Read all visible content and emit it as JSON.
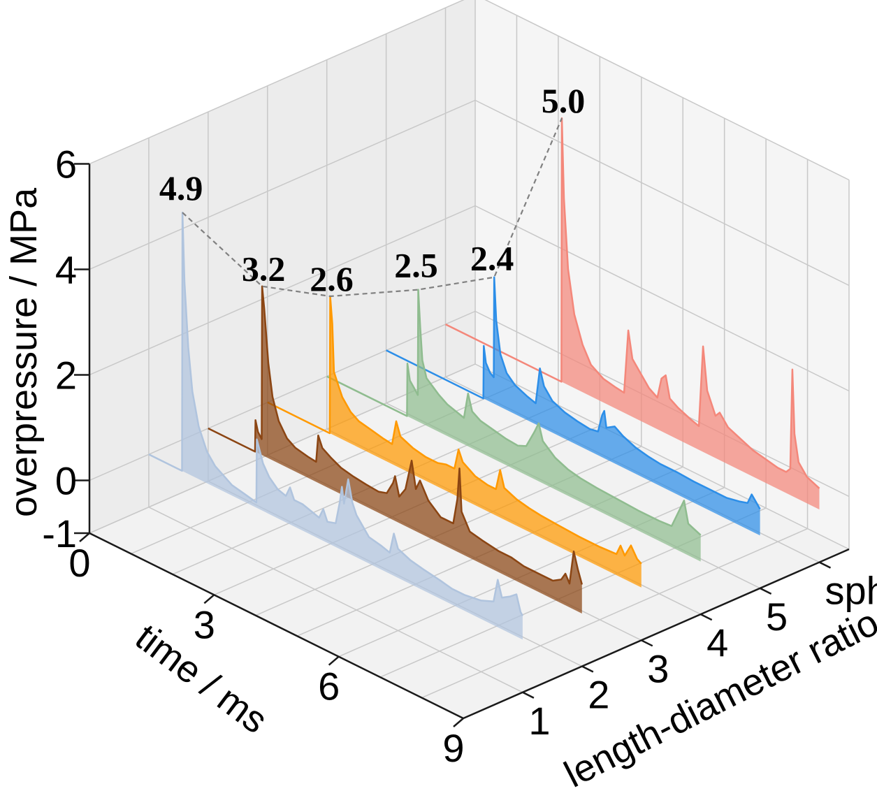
{
  "chart_data": {
    "type": "area",
    "projection": "3d",
    "xlabel": "time / ms",
    "ylabel": "length-diameter ratio",
    "zlabel": "overpressure / MPa",
    "x_ticks": [
      "0",
      "3",
      "6",
      "9"
    ],
    "y_ticks": [
      "1",
      "2",
      "3",
      "4",
      "5",
      "sphere"
    ],
    "z_ticks": [
      "-1",
      "0",
      "2",
      "4",
      "6"
    ],
    "xlim": [
      0,
      9
    ],
    "zlim": [
      -1,
      6
    ],
    "grid": true,
    "series": [
      {
        "category": "1",
        "color": "#b0c4de",
        "peak": 4.9,
        "peak_label": "4.9",
        "points": [
          [
            0,
            0
          ],
          [
            0.8,
            0
          ],
          [
            0.81,
            4.9
          ],
          [
            0.86,
            3.6
          ],
          [
            0.95,
            2.4
          ],
          [
            1.05,
            1.6
          ],
          [
            1.2,
            1.0
          ],
          [
            1.4,
            0.6
          ],
          [
            1.6,
            0.4
          ],
          [
            1.8,
            0.3
          ],
          [
            2.0,
            0.2
          ],
          [
            2.3,
            0.15
          ],
          [
            2.59,
            0.1
          ],
          [
            2.6,
            1.3
          ],
          [
            2.75,
            0.9
          ],
          [
            2.9,
            0.7
          ],
          [
            3.1,
            0.55
          ],
          [
            3.3,
            0.5
          ],
          [
            3.4,
            0.7
          ],
          [
            3.5,
            0.5
          ],
          [
            3.7,
            0.5
          ],
          [
            3.9,
            0.45
          ],
          [
            4.1,
            0.4
          ],
          [
            4.2,
            0.6
          ],
          [
            4.3,
            0.4
          ],
          [
            4.5,
            0.45
          ],
          [
            4.6,
            0.9
          ],
          [
            4.65,
            1.2
          ],
          [
            4.7,
            0.9
          ],
          [
            4.8,
            1.4
          ],
          [
            4.9,
            1.0
          ],
          [
            5.0,
            0.8
          ],
          [
            5.3,
            0.5
          ],
          [
            5.6,
            0.45
          ],
          [
            5.8,
            0.4
          ],
          [
            5.9,
            0.8
          ],
          [
            6.0,
            0.55
          ],
          [
            6.3,
            0.45
          ],
          [
            6.6,
            0.4
          ],
          [
            7.0,
            0.35
          ],
          [
            7.3,
            0.3
          ],
          [
            7.6,
            0.3
          ],
          [
            8.0,
            0.35
          ],
          [
            8.3,
            0.45
          ],
          [
            8.4,
            0.9
          ],
          [
            8.5,
            0.6
          ],
          [
            8.7,
            0.7
          ],
          [
            8.85,
            0.8
          ],
          [
            8.95,
            0.5
          ],
          [
            9,
            0.45
          ]
        ]
      },
      {
        "category": "2",
        "color": "#8b4513",
        "peak": 3.2,
        "peak_label": "3.2",
        "points": [
          [
            0,
            0
          ],
          [
            1.13,
            0
          ],
          [
            1.14,
            0.6
          ],
          [
            1.2,
            0.4
          ],
          [
            1.29,
            0.3
          ],
          [
            1.3,
            3.2
          ],
          [
            1.35,
            2.8
          ],
          [
            1.45,
            1.8
          ],
          [
            1.55,
            1.2
          ],
          [
            1.7,
            0.8
          ],
          [
            1.9,
            0.55
          ],
          [
            2.1,
            0.45
          ],
          [
            2.4,
            0.4
          ],
          [
            2.6,
            0.38
          ],
          [
            2.65,
            0.9
          ],
          [
            2.75,
            0.7
          ],
          [
            2.95,
            0.6
          ],
          [
            3.2,
            0.5
          ],
          [
            3.5,
            0.45
          ],
          [
            3.8,
            0.42
          ],
          [
            4.1,
            0.4
          ],
          [
            4.3,
            0.45
          ],
          [
            4.45,
            0.7
          ],
          [
            4.5,
            0.85
          ],
          [
            4.6,
            0.5
          ],
          [
            4.75,
            0.7
          ],
          [
            4.9,
            1.3
          ],
          [
            5.0,
            0.8
          ],
          [
            5.1,
            1.0
          ],
          [
            5.3,
            0.7
          ],
          [
            5.6,
            0.5
          ],
          [
            5.9,
            0.5
          ],
          [
            6.0,
            1.0
          ],
          [
            6.05,
            1.6
          ],
          [
            6.1,
            0.8
          ],
          [
            6.3,
            0.5
          ],
          [
            6.6,
            0.45
          ],
          [
            7.0,
            0.4
          ],
          [
            7.3,
            0.4
          ],
          [
            7.6,
            0.35
          ],
          [
            8.0,
            0.35
          ],
          [
            8.3,
            0.35
          ],
          [
            8.5,
            0.45
          ],
          [
            8.6,
            0.6
          ],
          [
            8.7,
            0.45
          ],
          [
            8.8,
            1.1
          ],
          [
            8.9,
            0.8
          ],
          [
            9,
            0.55
          ]
        ]
      },
      {
        "category": "3",
        "color": "#ff9900",
        "peak": 2.6,
        "peak_label": "2.6",
        "points": [
          [
            0,
            0
          ],
          [
            1.5,
            0
          ],
          [
            1.51,
            2.6
          ],
          [
            1.56,
            2.1
          ],
          [
            1.6,
            1.2
          ],
          [
            1.7,
            1.0
          ],
          [
            1.8,
            0.8
          ],
          [
            2.0,
            0.6
          ],
          [
            2.2,
            0.5
          ],
          [
            2.5,
            0.45
          ],
          [
            2.8,
            0.4
          ],
          [
            3.0,
            0.38
          ],
          [
            3.1,
            0.85
          ],
          [
            3.2,
            0.6
          ],
          [
            3.5,
            0.5
          ],
          [
            3.8,
            0.45
          ],
          [
            4.1,
            0.45
          ],
          [
            4.3,
            0.5
          ],
          [
            4.5,
            0.5
          ],
          [
            4.6,
            0.9
          ],
          [
            4.7,
            0.7
          ],
          [
            5.0,
            0.55
          ],
          [
            5.3,
            0.5
          ],
          [
            5.5,
            0.5
          ],
          [
            5.6,
            0.9
          ],
          [
            5.7,
            0.6
          ],
          [
            6.0,
            0.5
          ],
          [
            6.3,
            0.45
          ],
          [
            6.6,
            0.42
          ],
          [
            7.0,
            0.4
          ],
          [
            7.5,
            0.38
          ],
          [
            8.0,
            0.38
          ],
          [
            8.4,
            0.4
          ],
          [
            8.5,
            0.6
          ],
          [
            8.6,
            0.45
          ],
          [
            8.75,
            0.7
          ],
          [
            8.9,
            0.5
          ],
          [
            9,
            0.45
          ]
        ]
      },
      {
        "category": "4",
        "color": "#8fbc8f",
        "peak": 2.5,
        "peak_label": "2.5",
        "points": [
          [
            0,
            0
          ],
          [
            1.93,
            0
          ],
          [
            1.94,
            1.0
          ],
          [
            2.0,
            0.7
          ],
          [
            2.1,
            0.6
          ],
          [
            2.19,
            0.5
          ],
          [
            2.2,
            2.5
          ],
          [
            2.25,
            1.8
          ],
          [
            2.3,
            1.2
          ],
          [
            2.4,
            0.9
          ],
          [
            2.55,
            0.8
          ],
          [
            2.7,
            0.7
          ],
          [
            2.9,
            0.6
          ],
          [
            3.1,
            0.55
          ],
          [
            3.3,
            0.5
          ],
          [
            3.4,
            1.0
          ],
          [
            3.5,
            0.7
          ],
          [
            3.7,
            0.6
          ],
          [
            4.0,
            0.55
          ],
          [
            4.3,
            0.5
          ],
          [
            4.6,
            0.48
          ],
          [
            4.8,
            0.55
          ],
          [
            5.0,
            0.9
          ],
          [
            5.1,
            1.1
          ],
          [
            5.2,
            0.8
          ],
          [
            5.5,
            0.6
          ],
          [
            5.8,
            0.5
          ],
          [
            6.1,
            0.45
          ],
          [
            6.5,
            0.42
          ],
          [
            7.0,
            0.4
          ],
          [
            7.5,
            0.38
          ],
          [
            8.0,
            0.38
          ],
          [
            8.3,
            0.4
          ],
          [
            8.5,
            0.8
          ],
          [
            8.6,
            1.0
          ],
          [
            8.7,
            0.6
          ],
          [
            9,
            0.5
          ]
        ]
      },
      {
        "category": "5",
        "color": "#2c8ee8",
        "peak": 2.4,
        "peak_label": "2.4",
        "points": [
          [
            0,
            0
          ],
          [
            2.34,
            0
          ],
          [
            2.35,
            1.0
          ],
          [
            2.4,
            0.7
          ],
          [
            2.5,
            0.55
          ],
          [
            2.59,
            0.5
          ],
          [
            2.6,
            2.4
          ],
          [
            2.65,
            1.6
          ],
          [
            2.75,
            1.0
          ],
          [
            2.9,
            0.7
          ],
          [
            3.1,
            0.55
          ],
          [
            3.4,
            0.45
          ],
          [
            3.6,
            0.4
          ],
          [
            3.7,
            1.1
          ],
          [
            3.8,
            0.8
          ],
          [
            4.0,
            0.6
          ],
          [
            4.3,
            0.5
          ],
          [
            4.6,
            0.45
          ],
          [
            4.9,
            0.42
          ],
          [
            5.1,
            0.45
          ],
          [
            5.2,
            0.8
          ],
          [
            5.25,
            0.9
          ],
          [
            5.3,
            0.6
          ],
          [
            5.5,
            0.7
          ],
          [
            5.7,
            0.6
          ],
          [
            6.0,
            0.5
          ],
          [
            6.3,
            0.45
          ],
          [
            6.6,
            0.42
          ],
          [
            7.0,
            0.42
          ],
          [
            7.4,
            0.4
          ],
          [
            7.8,
            0.4
          ],
          [
            8.2,
            0.4
          ],
          [
            8.5,
            0.45
          ],
          [
            8.7,
            0.5
          ],
          [
            8.8,
            0.7
          ],
          [
            8.9,
            0.6
          ],
          [
            9,
            0.5
          ]
        ]
      },
      {
        "category": "sphere",
        "color": "#f4877a",
        "peak": 5.0,
        "peak_label": "5.0",
        "points": [
          [
            0,
            0
          ],
          [
            2.79,
            0
          ],
          [
            2.8,
            5.0
          ],
          [
            2.85,
            3.5
          ],
          [
            2.95,
            2.2
          ],
          [
            3.1,
            1.4
          ],
          [
            3.3,
            0.9
          ],
          [
            3.5,
            0.6
          ],
          [
            3.8,
            0.45
          ],
          [
            4.1,
            0.4
          ],
          [
            4.3,
            0.38
          ],
          [
            4.4,
            1.6
          ],
          [
            4.5,
            1.1
          ],
          [
            4.7,
            0.9
          ],
          [
            4.9,
            0.7
          ],
          [
            5.1,
            0.6
          ],
          [
            5.2,
            1.0
          ],
          [
            5.3,
            1.1
          ],
          [
            5.4,
            0.7
          ],
          [
            5.6,
            0.6
          ],
          [
            5.9,
            0.5
          ],
          [
            6.1,
            0.45
          ],
          [
            6.2,
            2.0
          ],
          [
            6.3,
            1.2
          ],
          [
            6.5,
            0.8
          ],
          [
            6.6,
            0.9
          ],
          [
            6.8,
            0.7
          ],
          [
            7.1,
            0.6
          ],
          [
            7.4,
            0.5
          ],
          [
            7.7,
            0.45
          ],
          [
            8.0,
            0.4
          ],
          [
            8.2,
            0.4
          ],
          [
            8.3,
            0.5
          ],
          [
            8.35,
            2.4
          ],
          [
            8.4,
            1.2
          ],
          [
            8.5,
            0.7
          ],
          [
            8.7,
            0.5
          ],
          [
            9,
            0.4
          ]
        ]
      }
    ]
  }
}
